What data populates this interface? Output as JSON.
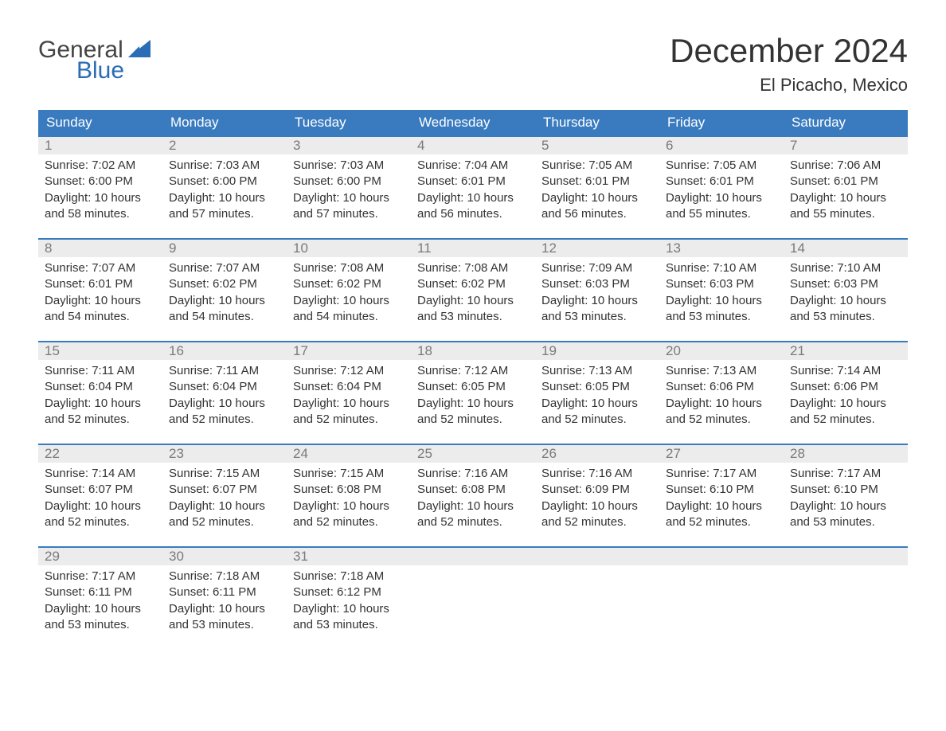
{
  "logo": {
    "top": "General",
    "bottom": "Blue",
    "sail_color": "#2a6db5",
    "top_color": "#444444"
  },
  "title": "December 2024",
  "location": "El Picacho, Mexico",
  "colors": {
    "header_bg": "#3a7bbf",
    "header_text": "#ffffff",
    "week_border": "#3a7bbf",
    "daynum_bg": "#ececec",
    "daynum_text": "#7a7a7a",
    "body_text": "#333333",
    "page_bg": "#ffffff"
  },
  "day_names": [
    "Sunday",
    "Monday",
    "Tuesday",
    "Wednesday",
    "Thursday",
    "Friday",
    "Saturday"
  ],
  "calendar": {
    "type": "table",
    "columns": 7,
    "rows": 5,
    "sunrise_label": "Sunrise: ",
    "sunset_label": "Sunset: ",
    "daylight_label": "Daylight: ",
    "daylight_unit_hours": " hours",
    "daylight_suffix_and": "and ",
    "daylight_unit_minutes": " minutes."
  },
  "days": [
    {
      "n": "1",
      "sunrise": "7:02 AM",
      "sunset": "6:00 PM",
      "dl_h": "10",
      "dl_m": "58"
    },
    {
      "n": "2",
      "sunrise": "7:03 AM",
      "sunset": "6:00 PM",
      "dl_h": "10",
      "dl_m": "57"
    },
    {
      "n": "3",
      "sunrise": "7:03 AM",
      "sunset": "6:00 PM",
      "dl_h": "10",
      "dl_m": "57"
    },
    {
      "n": "4",
      "sunrise": "7:04 AM",
      "sunset": "6:01 PM",
      "dl_h": "10",
      "dl_m": "56"
    },
    {
      "n": "5",
      "sunrise": "7:05 AM",
      "sunset": "6:01 PM",
      "dl_h": "10",
      "dl_m": "56"
    },
    {
      "n": "6",
      "sunrise": "7:05 AM",
      "sunset": "6:01 PM",
      "dl_h": "10",
      "dl_m": "55"
    },
    {
      "n": "7",
      "sunrise": "7:06 AM",
      "sunset": "6:01 PM",
      "dl_h": "10",
      "dl_m": "55"
    },
    {
      "n": "8",
      "sunrise": "7:07 AM",
      "sunset": "6:01 PM",
      "dl_h": "10",
      "dl_m": "54"
    },
    {
      "n": "9",
      "sunrise": "7:07 AM",
      "sunset": "6:02 PM",
      "dl_h": "10",
      "dl_m": "54"
    },
    {
      "n": "10",
      "sunrise": "7:08 AM",
      "sunset": "6:02 PM",
      "dl_h": "10",
      "dl_m": "54"
    },
    {
      "n": "11",
      "sunrise": "7:08 AM",
      "sunset": "6:02 PM",
      "dl_h": "10",
      "dl_m": "53"
    },
    {
      "n": "12",
      "sunrise": "7:09 AM",
      "sunset": "6:03 PM",
      "dl_h": "10",
      "dl_m": "53"
    },
    {
      "n": "13",
      "sunrise": "7:10 AM",
      "sunset": "6:03 PM",
      "dl_h": "10",
      "dl_m": "53"
    },
    {
      "n": "14",
      "sunrise": "7:10 AM",
      "sunset": "6:03 PM",
      "dl_h": "10",
      "dl_m": "53"
    },
    {
      "n": "15",
      "sunrise": "7:11 AM",
      "sunset": "6:04 PM",
      "dl_h": "10",
      "dl_m": "52"
    },
    {
      "n": "16",
      "sunrise": "7:11 AM",
      "sunset": "6:04 PM",
      "dl_h": "10",
      "dl_m": "52"
    },
    {
      "n": "17",
      "sunrise": "7:12 AM",
      "sunset": "6:04 PM",
      "dl_h": "10",
      "dl_m": "52"
    },
    {
      "n": "18",
      "sunrise": "7:12 AM",
      "sunset": "6:05 PM",
      "dl_h": "10",
      "dl_m": "52"
    },
    {
      "n": "19",
      "sunrise": "7:13 AM",
      "sunset": "6:05 PM",
      "dl_h": "10",
      "dl_m": "52"
    },
    {
      "n": "20",
      "sunrise": "7:13 AM",
      "sunset": "6:06 PM",
      "dl_h": "10",
      "dl_m": "52"
    },
    {
      "n": "21",
      "sunrise": "7:14 AM",
      "sunset": "6:06 PM",
      "dl_h": "10",
      "dl_m": "52"
    },
    {
      "n": "22",
      "sunrise": "7:14 AM",
      "sunset": "6:07 PM",
      "dl_h": "10",
      "dl_m": "52"
    },
    {
      "n": "23",
      "sunrise": "7:15 AM",
      "sunset": "6:07 PM",
      "dl_h": "10",
      "dl_m": "52"
    },
    {
      "n": "24",
      "sunrise": "7:15 AM",
      "sunset": "6:08 PM",
      "dl_h": "10",
      "dl_m": "52"
    },
    {
      "n": "25",
      "sunrise": "7:16 AM",
      "sunset": "6:08 PM",
      "dl_h": "10",
      "dl_m": "52"
    },
    {
      "n": "26",
      "sunrise": "7:16 AM",
      "sunset": "6:09 PM",
      "dl_h": "10",
      "dl_m": "52"
    },
    {
      "n": "27",
      "sunrise": "7:17 AM",
      "sunset": "6:10 PM",
      "dl_h": "10",
      "dl_m": "52"
    },
    {
      "n": "28",
      "sunrise": "7:17 AM",
      "sunset": "6:10 PM",
      "dl_h": "10",
      "dl_m": "53"
    },
    {
      "n": "29",
      "sunrise": "7:17 AM",
      "sunset": "6:11 PM",
      "dl_h": "10",
      "dl_m": "53"
    },
    {
      "n": "30",
      "sunrise": "7:18 AM",
      "sunset": "6:11 PM",
      "dl_h": "10",
      "dl_m": "53"
    },
    {
      "n": "31",
      "sunrise": "7:18 AM",
      "sunset": "6:12 PM",
      "dl_h": "10",
      "dl_m": "53"
    }
  ]
}
